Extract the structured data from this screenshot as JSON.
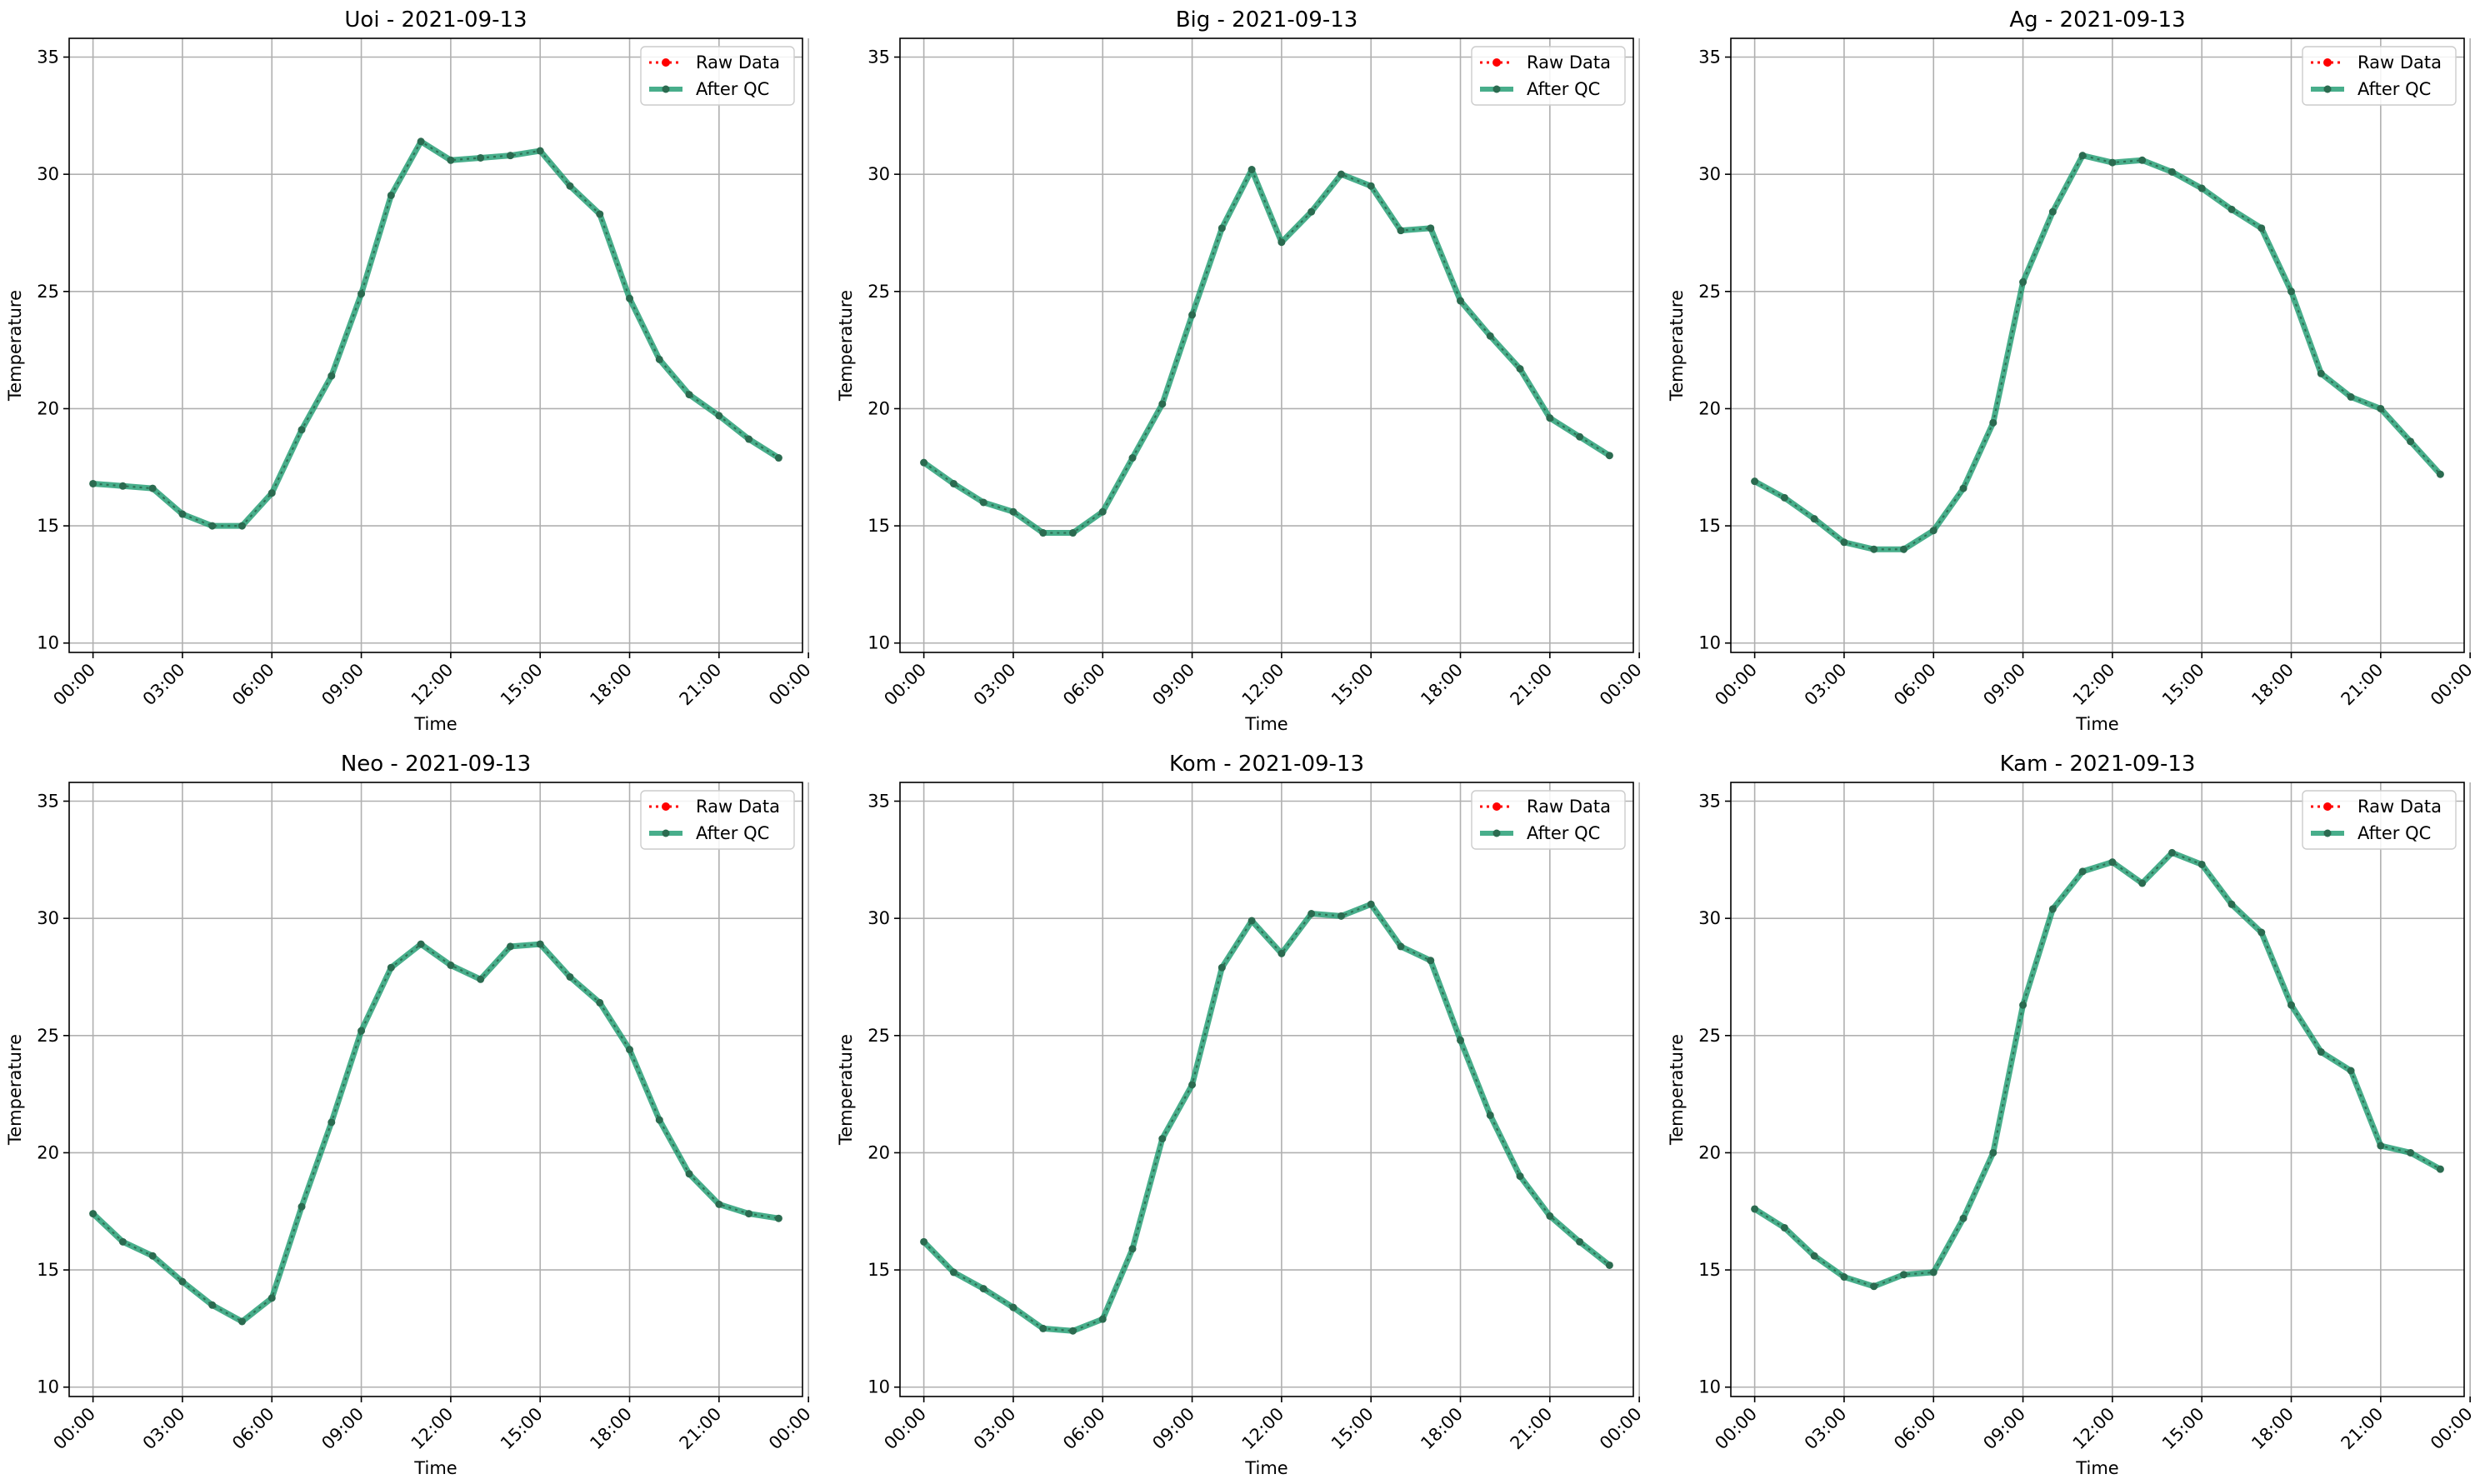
{
  "colors": {
    "raw": "#ff0000",
    "qc": "#1a9a6e",
    "qc_marker": "#2b6b50",
    "grid": "#b0b0b0",
    "axes": "#000000"
  },
  "chart_data": [
    {
      "type": "line",
      "title": "Uoi - 2021-09-13",
      "xlabel": "Time",
      "ylabel": "Temperature",
      "ylim": [
        9.6,
        35.8
      ],
      "xlim": [
        -0.8,
        23.8
      ],
      "yticks": [
        10,
        15,
        20,
        25,
        30,
        35
      ],
      "xticks": [
        0,
        3,
        6,
        9,
        12,
        15,
        18,
        21,
        24
      ],
      "xticklabels": [
        "00:00",
        "03:00",
        "06:00",
        "09:00",
        "12:00",
        "15:00",
        "18:00",
        "21:00",
        "00:00"
      ],
      "grid": true,
      "legend_position": "top-right",
      "x": [
        0,
        1,
        2,
        3,
        4,
        5,
        6,
        7,
        8,
        9,
        10,
        11,
        12,
        13,
        14,
        15,
        16,
        17,
        18,
        19,
        20,
        21,
        22,
        23
      ],
      "series": [
        {
          "name": "Raw Data",
          "values": [
            16.8,
            16.7,
            16.6,
            15.5,
            15.0,
            15.0,
            16.4,
            19.1,
            21.4,
            24.9,
            29.1,
            31.4,
            30.6,
            30.7,
            30.8,
            31.0,
            29.5,
            28.3,
            24.7,
            22.1,
            20.6,
            19.7,
            18.7,
            17.9
          ]
        },
        {
          "name": "After QC",
          "values": [
            16.8,
            16.7,
            16.6,
            15.5,
            15.0,
            15.0,
            16.4,
            19.1,
            21.4,
            24.9,
            29.1,
            31.4,
            30.6,
            30.7,
            30.8,
            31.0,
            29.5,
            28.3,
            24.7,
            22.1,
            20.6,
            19.7,
            18.7,
            17.9
          ]
        }
      ]
    },
    {
      "type": "line",
      "title": "Big - 2021-09-13",
      "xlabel": "Time",
      "ylabel": "Temperature",
      "ylim": [
        9.6,
        35.8
      ],
      "xlim": [
        -0.8,
        23.8
      ],
      "yticks": [
        10,
        15,
        20,
        25,
        30,
        35
      ],
      "xticks": [
        0,
        3,
        6,
        9,
        12,
        15,
        18,
        21,
        24
      ],
      "xticklabels": [
        "00:00",
        "03:00",
        "06:00",
        "09:00",
        "12:00",
        "15:00",
        "18:00",
        "21:00",
        "00:00"
      ],
      "grid": true,
      "legend_position": "top-right",
      "x": [
        0,
        1,
        2,
        3,
        4,
        5,
        6,
        7,
        8,
        9,
        10,
        11,
        12,
        13,
        14,
        15,
        16,
        17,
        18,
        19,
        20,
        21,
        22,
        23
      ],
      "series": [
        {
          "name": "Raw Data",
          "values": [
            17.7,
            16.8,
            16.0,
            15.6,
            14.7,
            14.7,
            15.6,
            17.9,
            20.2,
            24.0,
            27.7,
            30.2,
            27.1,
            28.4,
            30.0,
            29.5,
            27.6,
            27.7,
            24.6,
            23.1,
            21.7,
            19.6,
            18.8,
            18.0
          ]
        },
        {
          "name": "After QC",
          "values": [
            17.7,
            16.8,
            16.0,
            15.6,
            14.7,
            14.7,
            15.6,
            17.9,
            20.2,
            24.0,
            27.7,
            30.2,
            27.1,
            28.4,
            30.0,
            29.5,
            27.6,
            27.7,
            24.6,
            23.1,
            21.7,
            19.6,
            18.8,
            18.0
          ]
        }
      ]
    },
    {
      "type": "line",
      "title": "Ag - 2021-09-13",
      "xlabel": "Time",
      "ylabel": "Temperature",
      "ylim": [
        9.6,
        35.8
      ],
      "xlim": [
        -0.8,
        23.8
      ],
      "yticks": [
        10,
        15,
        20,
        25,
        30,
        35
      ],
      "xticks": [
        0,
        3,
        6,
        9,
        12,
        15,
        18,
        21,
        24
      ],
      "xticklabels": [
        "00:00",
        "03:00",
        "06:00",
        "09:00",
        "12:00",
        "15:00",
        "18:00",
        "21:00",
        "00:00"
      ],
      "grid": true,
      "legend_position": "top-right",
      "x": [
        0,
        1,
        2,
        3,
        4,
        5,
        6,
        7,
        8,
        9,
        10,
        11,
        12,
        13,
        14,
        15,
        16,
        17,
        18,
        19,
        20,
        21,
        22,
        23
      ],
      "series": [
        {
          "name": "Raw Data",
          "values": [
            16.9,
            16.2,
            15.3,
            14.3,
            14.0,
            14.0,
            14.8,
            16.6,
            19.4,
            25.4,
            28.4,
            30.8,
            30.5,
            30.6,
            30.1,
            29.4,
            28.5,
            27.7,
            25.0,
            21.5,
            20.5,
            20.0,
            18.6,
            17.2
          ]
        },
        {
          "name": "After QC",
          "values": [
            16.9,
            16.2,
            15.3,
            14.3,
            14.0,
            14.0,
            14.8,
            16.6,
            19.4,
            25.4,
            28.4,
            30.8,
            30.5,
            30.6,
            30.1,
            29.4,
            28.5,
            27.7,
            25.0,
            21.5,
            20.5,
            20.0,
            18.6,
            17.2
          ]
        }
      ]
    },
    {
      "type": "line",
      "title": "Neo - 2021-09-13",
      "xlabel": "Time",
      "ylabel": "Temperature",
      "ylim": [
        9.6,
        35.8
      ],
      "xlim": [
        -0.8,
        23.8
      ],
      "yticks": [
        10,
        15,
        20,
        25,
        30,
        35
      ],
      "xticks": [
        0,
        3,
        6,
        9,
        12,
        15,
        18,
        21,
        24
      ],
      "xticklabels": [
        "00:00",
        "03:00",
        "06:00",
        "09:00",
        "12:00",
        "15:00",
        "18:00",
        "21:00",
        "00:00"
      ],
      "grid": true,
      "legend_position": "top-right",
      "x": [
        0,
        1,
        2,
        3,
        4,
        5,
        6,
        7,
        8,
        9,
        10,
        11,
        12,
        13,
        14,
        15,
        16,
        17,
        18,
        19,
        20,
        21,
        22,
        23
      ],
      "series": [
        {
          "name": "Raw Data",
          "values": [
            17.4,
            16.2,
            15.6,
            14.5,
            13.5,
            12.8,
            13.8,
            17.7,
            21.3,
            25.2,
            27.9,
            28.9,
            28.0,
            27.4,
            28.8,
            28.9,
            27.5,
            26.4,
            24.4,
            21.4,
            19.1,
            17.8,
            17.4,
            17.2
          ]
        },
        {
          "name": "After QC",
          "values": [
            17.4,
            16.2,
            15.6,
            14.5,
            13.5,
            12.8,
            13.8,
            17.7,
            21.3,
            25.2,
            27.9,
            28.9,
            28.0,
            27.4,
            28.8,
            28.9,
            27.5,
            26.4,
            24.4,
            21.4,
            19.1,
            17.8,
            17.4,
            17.2
          ]
        }
      ]
    },
    {
      "type": "line",
      "title": "Kom - 2021-09-13",
      "xlabel": "Time",
      "ylabel": "Temperature",
      "ylim": [
        9.6,
        35.8
      ],
      "xlim": [
        -0.8,
        23.8
      ],
      "yticks": [
        10,
        15,
        20,
        25,
        30,
        35
      ],
      "xticks": [
        0,
        3,
        6,
        9,
        12,
        15,
        18,
        21,
        24
      ],
      "xticklabels": [
        "00:00",
        "03:00",
        "06:00",
        "09:00",
        "12:00",
        "15:00",
        "18:00",
        "21:00",
        "00:00"
      ],
      "grid": true,
      "legend_position": "top-right",
      "x": [
        0,
        1,
        2,
        3,
        4,
        5,
        6,
        7,
        8,
        9,
        10,
        11,
        12,
        13,
        14,
        15,
        16,
        17,
        18,
        19,
        20,
        21,
        22,
        23
      ],
      "series": [
        {
          "name": "Raw Data",
          "values": [
            16.2,
            14.9,
            14.2,
            13.4,
            12.5,
            12.4,
            12.9,
            15.9,
            20.6,
            22.9,
            27.9,
            29.9,
            28.5,
            30.2,
            30.1,
            30.6,
            28.8,
            28.2,
            24.8,
            21.6,
            19.0,
            17.3,
            16.2,
            15.2
          ]
        },
        {
          "name": "After QC",
          "values": [
            16.2,
            14.9,
            14.2,
            13.4,
            12.5,
            12.4,
            12.9,
            15.9,
            20.6,
            22.9,
            27.9,
            29.9,
            28.5,
            30.2,
            30.1,
            30.6,
            28.8,
            28.2,
            24.8,
            21.6,
            19.0,
            17.3,
            16.2,
            15.2
          ]
        }
      ]
    },
    {
      "type": "line",
      "title": "Kam - 2021-09-13",
      "xlabel": "Time",
      "ylabel": "Temperature",
      "ylim": [
        9.6,
        35.8
      ],
      "xlim": [
        -0.8,
        23.8
      ],
      "yticks": [
        10,
        15,
        20,
        25,
        30,
        35
      ],
      "xticks": [
        0,
        3,
        6,
        9,
        12,
        15,
        18,
        21,
        24
      ],
      "xticklabels": [
        "00:00",
        "03:00",
        "06:00",
        "09:00",
        "12:00",
        "15:00",
        "18:00",
        "21:00",
        "00:00"
      ],
      "grid": true,
      "legend_position": "top-right",
      "x": [
        0,
        1,
        2,
        3,
        4,
        5,
        6,
        7,
        8,
        9,
        10,
        11,
        12,
        13,
        14,
        15,
        16,
        17,
        18,
        19,
        20,
        21,
        22,
        23
      ],
      "series": [
        {
          "name": "Raw Data",
          "values": [
            17.6,
            16.8,
            15.6,
            14.7,
            14.3,
            14.8,
            14.9,
            17.2,
            20.0,
            26.3,
            30.4,
            32.0,
            32.4,
            31.5,
            32.8,
            32.3,
            30.6,
            29.4,
            26.3,
            24.3,
            23.5,
            20.3,
            20.0,
            19.3
          ]
        },
        {
          "name": "After QC",
          "values": [
            17.6,
            16.8,
            15.6,
            14.7,
            14.3,
            14.8,
            14.9,
            17.2,
            20.0,
            26.3,
            30.4,
            32.0,
            32.4,
            31.5,
            32.8,
            32.3,
            30.6,
            29.4,
            26.3,
            24.3,
            23.5,
            20.3,
            20.0,
            19.3
          ]
        }
      ]
    }
  ]
}
